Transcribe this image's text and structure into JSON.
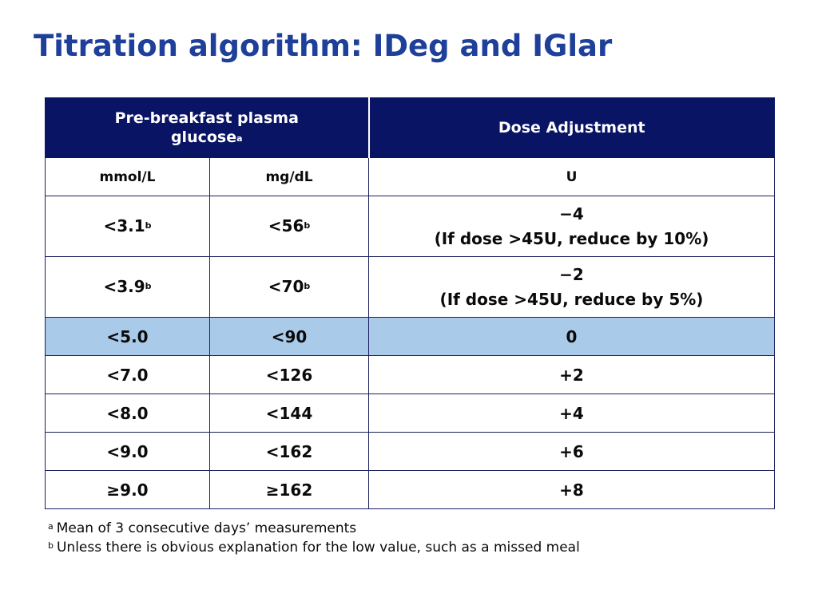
{
  "slide": {
    "title": "Titration algorithm: IDeg and IGlar"
  },
  "table": {
    "header": {
      "glucose_line1": "Pre-breakfast plasma",
      "glucose_line2": "glucose",
      "glucose_mark": "a",
      "dose": "Dose Adjustment"
    },
    "units": {
      "mmol": "mmol/L",
      "mgdl": "mg/dL",
      "u": "U"
    },
    "rows": [
      {
        "mmol": "<3.1",
        "mmol_mark": "b",
        "mgdl": "<56",
        "mgdl_mark": "b",
        "dose": "−4",
        "dose_note": "(If dose >45U, reduce by 10%)"
      },
      {
        "mmol": "<3.9",
        "mmol_mark": "b",
        "mgdl": "<70",
        "mgdl_mark": "b",
        "dose": "−2",
        "dose_note": "(If dose >45U, reduce by 5%)"
      },
      {
        "mmol": "<5.0",
        "mgdl": "<90",
        "dose": "0"
      },
      {
        "mmol": "<7.0",
        "mgdl": "<126",
        "dose": "+2"
      },
      {
        "mmol": "<8.0",
        "mgdl": "<144",
        "dose": "+4"
      },
      {
        "mmol": "<9.0",
        "mgdl": "<162",
        "dose": "+6"
      },
      {
        "mmol": "≥9.0",
        "mgdl": "≥162",
        "dose": "+8"
      }
    ],
    "highlight_color": "#a9cbe9",
    "header_color": "#0a1464"
  },
  "footnotes": [
    {
      "mark": "a",
      "text": "Mean of 3 consecutive days’ measurements"
    },
    {
      "mark": "b",
      "text": "Unless there is obvious explanation for the low value, such as a missed meal"
    }
  ]
}
